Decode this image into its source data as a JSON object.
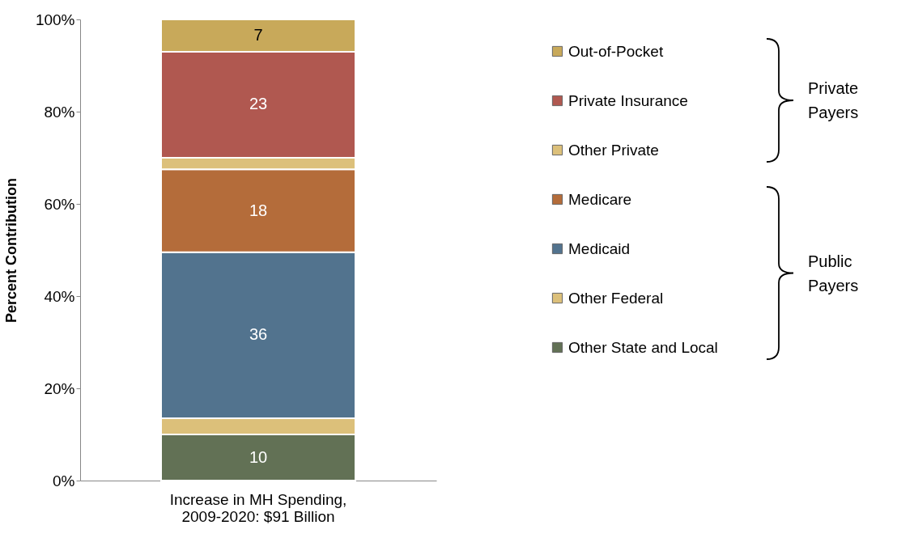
{
  "chart_data": {
    "type": "bar",
    "stacked": true,
    "ylabel": "Percent Contribution",
    "categories": [
      "Increase in MH Spending,\n2009-2020: $91 Billion"
    ],
    "series": [
      {
        "name": "Other State and Local",
        "color": "#627155",
        "values": [
          10
        ],
        "value_labels": [
          "10"
        ]
      },
      {
        "name": "Other Federal",
        "color": "#dcc07a",
        "values": [
          3.5
        ],
        "value_labels": [
          null
        ]
      },
      {
        "name": "Medicaid",
        "color": "#52738e",
        "values": [
          36
        ],
        "value_labels": [
          "36"
        ]
      },
      {
        "name": "Medicare",
        "color": "#b46c3a",
        "values": [
          18
        ],
        "value_labels": [
          "18"
        ]
      },
      {
        "name": "Other Private",
        "color": "#dcc07a",
        "values": [
          2.5
        ],
        "value_labels": [
          null
        ]
      },
      {
        "name": "Private Insurance",
        "color": "#b05850",
        "values": [
          23
        ],
        "value_labels": [
          "23"
        ]
      },
      {
        "name": "Out-of-Pocket",
        "color": "#c8a95a",
        "values": [
          7
        ],
        "value_labels": [
          "7"
        ]
      }
    ],
    "ylim": [
      0,
      100
    ],
    "yticks": [
      {
        "value": 0,
        "label": "0%"
      },
      {
        "value": 20,
        "label": "20%"
      },
      {
        "value": 40,
        "label": "40%"
      },
      {
        "value": 60,
        "label": "60%"
      },
      {
        "value": 80,
        "label": "80%"
      },
      {
        "value": 100,
        "label": "100%"
      }
    ],
    "legend": "right",
    "grid": false,
    "annotations": [
      "Private Payers",
      "Public Payers"
    ]
  }
}
